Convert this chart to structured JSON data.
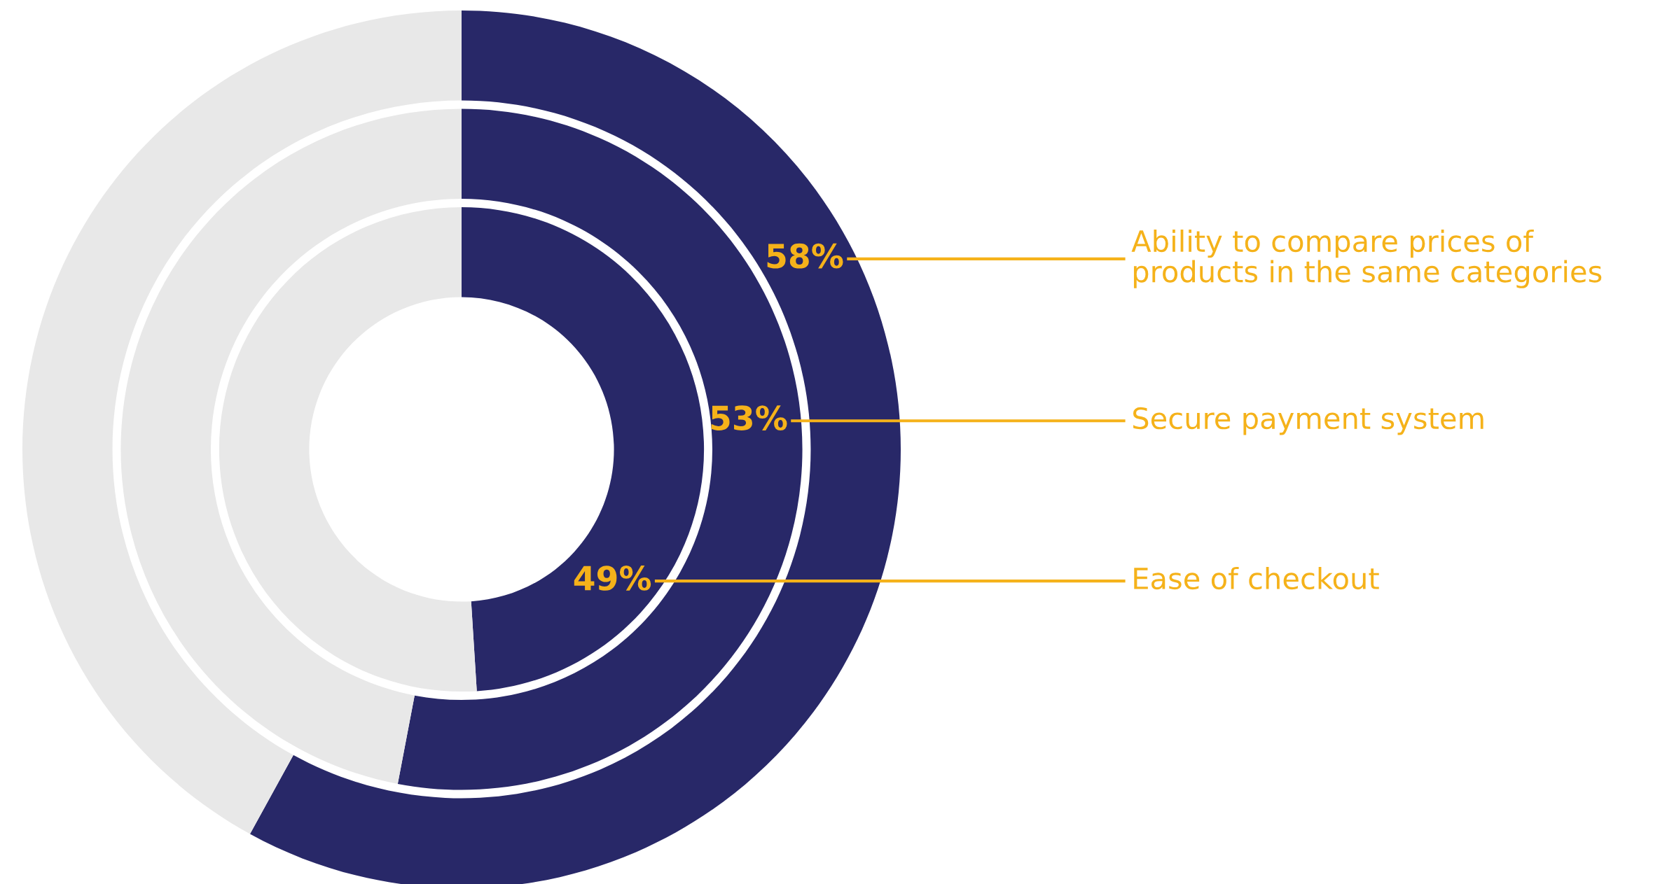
{
  "chart_data": {
    "type": "donut",
    "series": [
      {
        "name": "Ability to compare prices of\nproducts in the same categories",
        "values": [
          58,
          42
        ],
        "colors": [
          "#282868",
          "#e8e8e8"
        ],
        "value_labels": [
          "58%",
          null
        ]
      },
      {
        "name": "Secure payment system",
        "values": [
          53,
          47
        ],
        "colors": [
          "#282868",
          "#e8e8e8"
        ],
        "value_labels": [
          "53%",
          null
        ]
      },
      {
        "name": "Ease of checkout",
        "values": [
          49,
          51
        ],
        "colors": [
          "#282868",
          "#e8e8e8"
        ],
        "value_labels": [
          "49%",
          null
        ]
      }
    ]
  }
}
